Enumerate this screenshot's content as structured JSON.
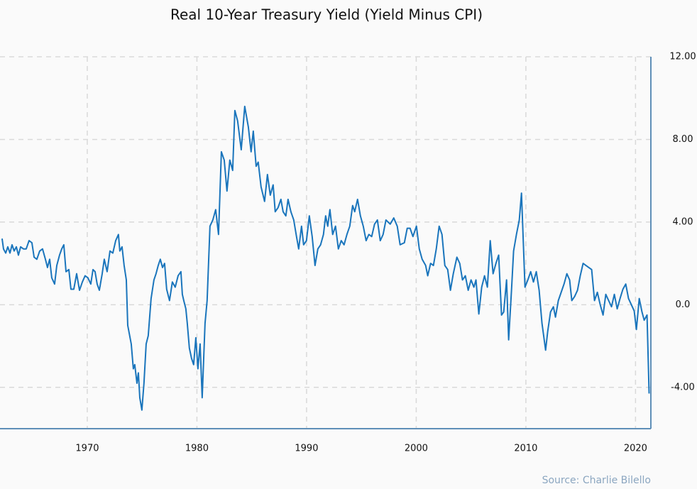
{
  "chart_data": {
    "type": "line",
    "title": "Real 10-Year Treasury Yield (Yield Minus CPI)",
    "source": "Source: Charlie Bilello",
    "xlim": [
      1962.04,
      2021.4
    ],
    "ylim": [
      -6,
      12
    ],
    "xticks": [
      1970,
      1980,
      1990,
      2000,
      2010,
      2020
    ],
    "yticks": [
      {
        "value": -4,
        "label": "-4.00"
      },
      {
        "value": 0,
        "label": "0.0"
      },
      {
        "value": 4,
        "label": "4.00"
      },
      {
        "value": 8,
        "label": "8.00"
      },
      {
        "value": 12,
        "label": "12.00"
      }
    ],
    "grid": true,
    "y_axis_side": "right",
    "series": [
      {
        "color": "#1a75bc",
        "x": [
          1962.23,
          1962.36,
          1962.56,
          1962.75,
          1962.95,
          1963.14,
          1963.33,
          1963.53,
          1963.72,
          1963.92,
          1964.18,
          1964.43,
          1964.69,
          1964.95,
          1965.15,
          1965.4,
          1965.66,
          1965.92,
          1966.18,
          1966.37,
          1966.57,
          1966.76,
          1967.02,
          1967.22,
          1967.47,
          1967.67,
          1967.86,
          1968.06,
          1968.32,
          1968.51,
          1968.77,
          1969.03,
          1969.29,
          1969.55,
          1969.8,
          1970.06,
          1970.32,
          1970.52,
          1970.71,
          1970.9,
          1971.1,
          1971.36,
          1971.55,
          1971.81,
          1972.07,
          1972.33,
          1972.59,
          1972.84,
          1972.97,
          1973.17,
          1973.36,
          1973.56,
          1973.69,
          1974.01,
          1974.2,
          1974.33,
          1974.53,
          1974.66,
          1974.79,
          1974.98,
          1975.17,
          1975.37,
          1975.56,
          1975.82,
          1976.08,
          1976.27,
          1976.47,
          1976.66,
          1976.86,
          1977.05,
          1977.24,
          1977.5,
          1977.76,
          1978.02,
          1978.28,
          1978.54,
          1978.67,
          1978.8,
          1978.99,
          1979.12,
          1979.31,
          1979.51,
          1979.7,
          1979.9,
          1980.09,
          1980.29,
          1980.48,
          1980.74,
          1980.93,
          1981.19,
          1981.45,
          1981.71,
          1981.97,
          1982.23,
          1982.49,
          1982.74,
          1983.0,
          1983.26,
          1983.46,
          1983.71,
          1984.04,
          1984.36,
          1984.69,
          1984.94,
          1985.14,
          1985.4,
          1985.59,
          1985.85,
          1986.17,
          1986.43,
          1986.69,
          1986.95,
          1987.14,
          1987.4,
          1987.66,
          1987.86,
          1988.11,
          1988.31,
          1988.57,
          1988.83,
          1989.08,
          1989.28,
          1989.54,
          1989.73,
          1989.99,
          1990.25,
          1990.51,
          1990.77,
          1991.03,
          1991.28,
          1991.54,
          1991.74,
          1991.93,
          1992.13,
          1992.38,
          1992.64,
          1992.9,
          1993.16,
          1993.42,
          1993.68,
          1993.94,
          1994.2,
          1994.39,
          1994.65,
          1994.91,
          1995.17,
          1995.43,
          1995.68,
          1995.94,
          1996.2,
          1996.46,
          1996.72,
          1996.98,
          1997.24,
          1997.63,
          1997.95,
          1998.27,
          1998.53,
          1998.92,
          1999.18,
          1999.44,
          1999.7,
          2000.02,
          2000.28,
          2000.54,
          2000.86,
          2001.05,
          2001.31,
          2001.57,
          2001.83,
          2002.09,
          2002.35,
          2002.61,
          2002.87,
          2003.12,
          2003.38,
          2003.71,
          2003.97,
          2004.22,
          2004.48,
          2004.74,
          2005.0,
          2005.26,
          2005.45,
          2005.71,
          2005.97,
          2006.23,
          2006.49,
          2006.75,
          2007.01,
          2007.27,
          2007.52,
          2007.78,
          2007.98,
          2008.24,
          2008.43,
          2008.69,
          2008.88,
          2009.14,
          2009.4,
          2009.6,
          2009.92,
          2010.18,
          2010.44,
          2010.69,
          2010.95,
          2011.21,
          2011.47,
          2011.8,
          2011.99,
          2012.25,
          2012.51,
          2012.7,
          2012.96,
          2013.22,
          2013.48,
          2013.74,
          2013.99,
          2014.19,
          2014.45,
          2014.71,
          2014.96,
          2015.22,
          2015.48,
          2015.74,
          2016.0,
          2016.26,
          2016.52,
          2016.78,
          2017.04,
          2017.29,
          2017.55,
          2017.81,
          2018.07,
          2018.33,
          2018.59,
          2018.85,
          2019.11,
          2019.36,
          2019.62,
          2019.88,
          2020.08,
          2020.34,
          2020.59,
          2020.79,
          2021.05,
          2021.24
        ],
        "values": [
          3.2,
          2.7,
          2.5,
          2.8,
          2.5,
          2.9,
          2.6,
          2.8,
          2.4,
          2.8,
          2.7,
          2.7,
          3.1,
          3.0,
          2.3,
          2.2,
          2.6,
          2.7,
          2.2,
          1.8,
          2.2,
          1.3,
          1.0,
          1.9,
          2.4,
          2.7,
          2.9,
          1.6,
          1.7,
          0.75,
          0.75,
          1.5,
          0.7,
          1.1,
          1.4,
          1.3,
          1.0,
          1.7,
          1.6,
          1.0,
          0.7,
          1.5,
          2.2,
          1.6,
          2.6,
          2.5,
          3.1,
          3.4,
          2.6,
          2.8,
          1.9,
          1.2,
          -1.0,
          -1.9,
          -3.1,
          -2.9,
          -3.8,
          -3.3,
          -4.5,
          -5.1,
          -3.8,
          -1.9,
          -1.5,
          0.3,
          1.2,
          1.5,
          1.9,
          2.2,
          1.8,
          2.0,
          0.75,
          0.2,
          1.1,
          0.85,
          1.4,
          1.6,
          0.5,
          0.2,
          -0.2,
          -0.9,
          -2.1,
          -2.6,
          -2.9,
          -1.6,
          -3.1,
          -1.9,
          -4.5,
          -0.9,
          0.2,
          3.8,
          4.1,
          4.6,
          3.4,
          7.4,
          7.0,
          5.5,
          7.0,
          6.5,
          9.4,
          8.9,
          7.5,
          9.6,
          8.6,
          7.4,
          8.4,
          6.7,
          6.9,
          5.7,
          5.0,
          6.3,
          5.3,
          5.8,
          4.5,
          4.7,
          5.1,
          4.5,
          4.3,
          5.1,
          4.5,
          4.1,
          3.3,
          2.7,
          3.8,
          2.9,
          3.1,
          4.3,
          3.3,
          1.9,
          2.7,
          2.9,
          3.4,
          4.3,
          3.8,
          4.6,
          3.4,
          3.8,
          2.7,
          3.1,
          2.9,
          3.4,
          3.8,
          4.8,
          4.5,
          5.1,
          4.3,
          3.8,
          3.1,
          3.4,
          3.3,
          3.9,
          4.1,
          3.1,
          3.4,
          4.1,
          3.9,
          4.2,
          3.8,
          2.9,
          3.0,
          3.7,
          3.7,
          3.3,
          3.8,
          2.7,
          2.2,
          1.9,
          1.4,
          2.0,
          1.9,
          2.7,
          3.8,
          3.4,
          1.9,
          1.7,
          0.7,
          1.5,
          2.3,
          2.0,
          1.2,
          1.4,
          0.7,
          1.2,
          0.85,
          1.2,
          -0.45,
          0.85,
          1.4,
          0.85,
          3.1,
          1.5,
          2.0,
          2.4,
          -0.5,
          -0.35,
          1.2,
          -1.7,
          0.7,
          2.6,
          3.4,
          4.1,
          5.4,
          0.85,
          1.2,
          1.6,
          1.1,
          1.6,
          0.7,
          -0.9,
          -2.2,
          -1.3,
          -0.35,
          -0.1,
          -0.6,
          0.2,
          0.6,
          1.0,
          1.5,
          1.2,
          0.2,
          0.4,
          0.7,
          1.4,
          2.0,
          1.9,
          1.8,
          1.7,
          0.2,
          0.6,
          0.0,
          -0.5,
          0.5,
          0.2,
          -0.1,
          0.5,
          -0.2,
          0.3,
          0.75,
          1.0,
          0.3,
          0.0,
          -0.3,
          -1.2,
          0.3,
          -0.35,
          -0.75,
          -0.5,
          -4.3
        ]
      }
    ]
  }
}
